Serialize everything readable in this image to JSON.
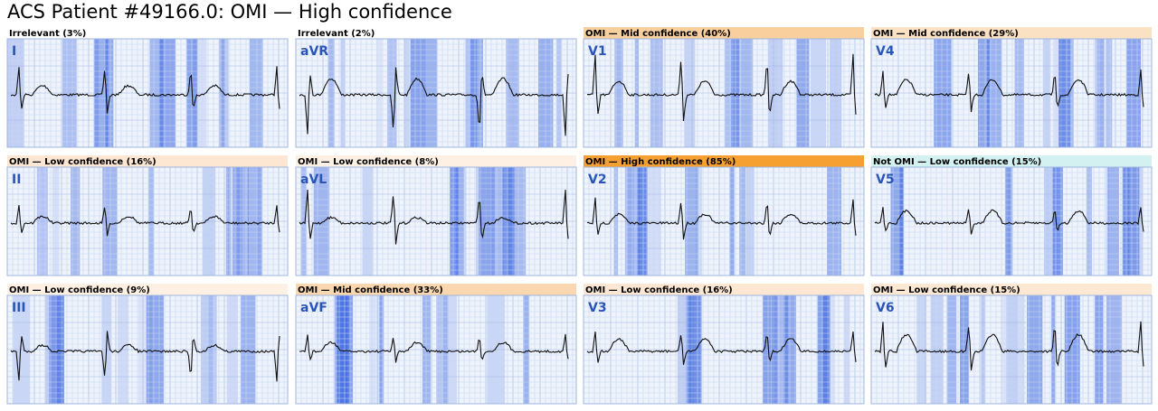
{
  "header": {
    "title": "ACS Patient #49166.0: OMI — High confidence"
  },
  "panels": [
    {
      "lead": "I",
      "label": "Irrelevant (3%)",
      "color": "#ffffff"
    },
    {
      "lead": "aVR",
      "label": "Irrelevant (2%)",
      "color": "#ffffff"
    },
    {
      "lead": "V1",
      "label": "OMI — Mid confidence (40%)",
      "color": "#f9cf9e"
    },
    {
      "lead": "V4",
      "label": "OMI — Mid confidence (29%)",
      "color": "#fbe1c4"
    },
    {
      "lead": "II",
      "label": "OMI — Low confidence (16%)",
      "color": "#fde7d2"
    },
    {
      "lead": "aVL",
      "label": "OMI — Low confidence (8%)",
      "color": "#fef1e4"
    },
    {
      "lead": "V2",
      "label": "OMI — High confidence (85%)",
      "color": "#f6a032"
    },
    {
      "lead": "V5",
      "label": "Not OMI — Low confidence (15%)",
      "color": "#d3f1f1"
    },
    {
      "lead": "III",
      "label": "OMI — Low confidence (9%)",
      "color": "#fef0e2"
    },
    {
      "lead": "aVF",
      "label": "OMI — Mid confidence (33%)",
      "color": "#fad7ae"
    },
    {
      "lead": "V3",
      "label": "OMI — Low confidence (16%)",
      "color": "#fde7d2"
    },
    {
      "lead": "V6",
      "label": "OMI — Low confidence (15%)",
      "color": "#fde8d4"
    }
  ]
}
